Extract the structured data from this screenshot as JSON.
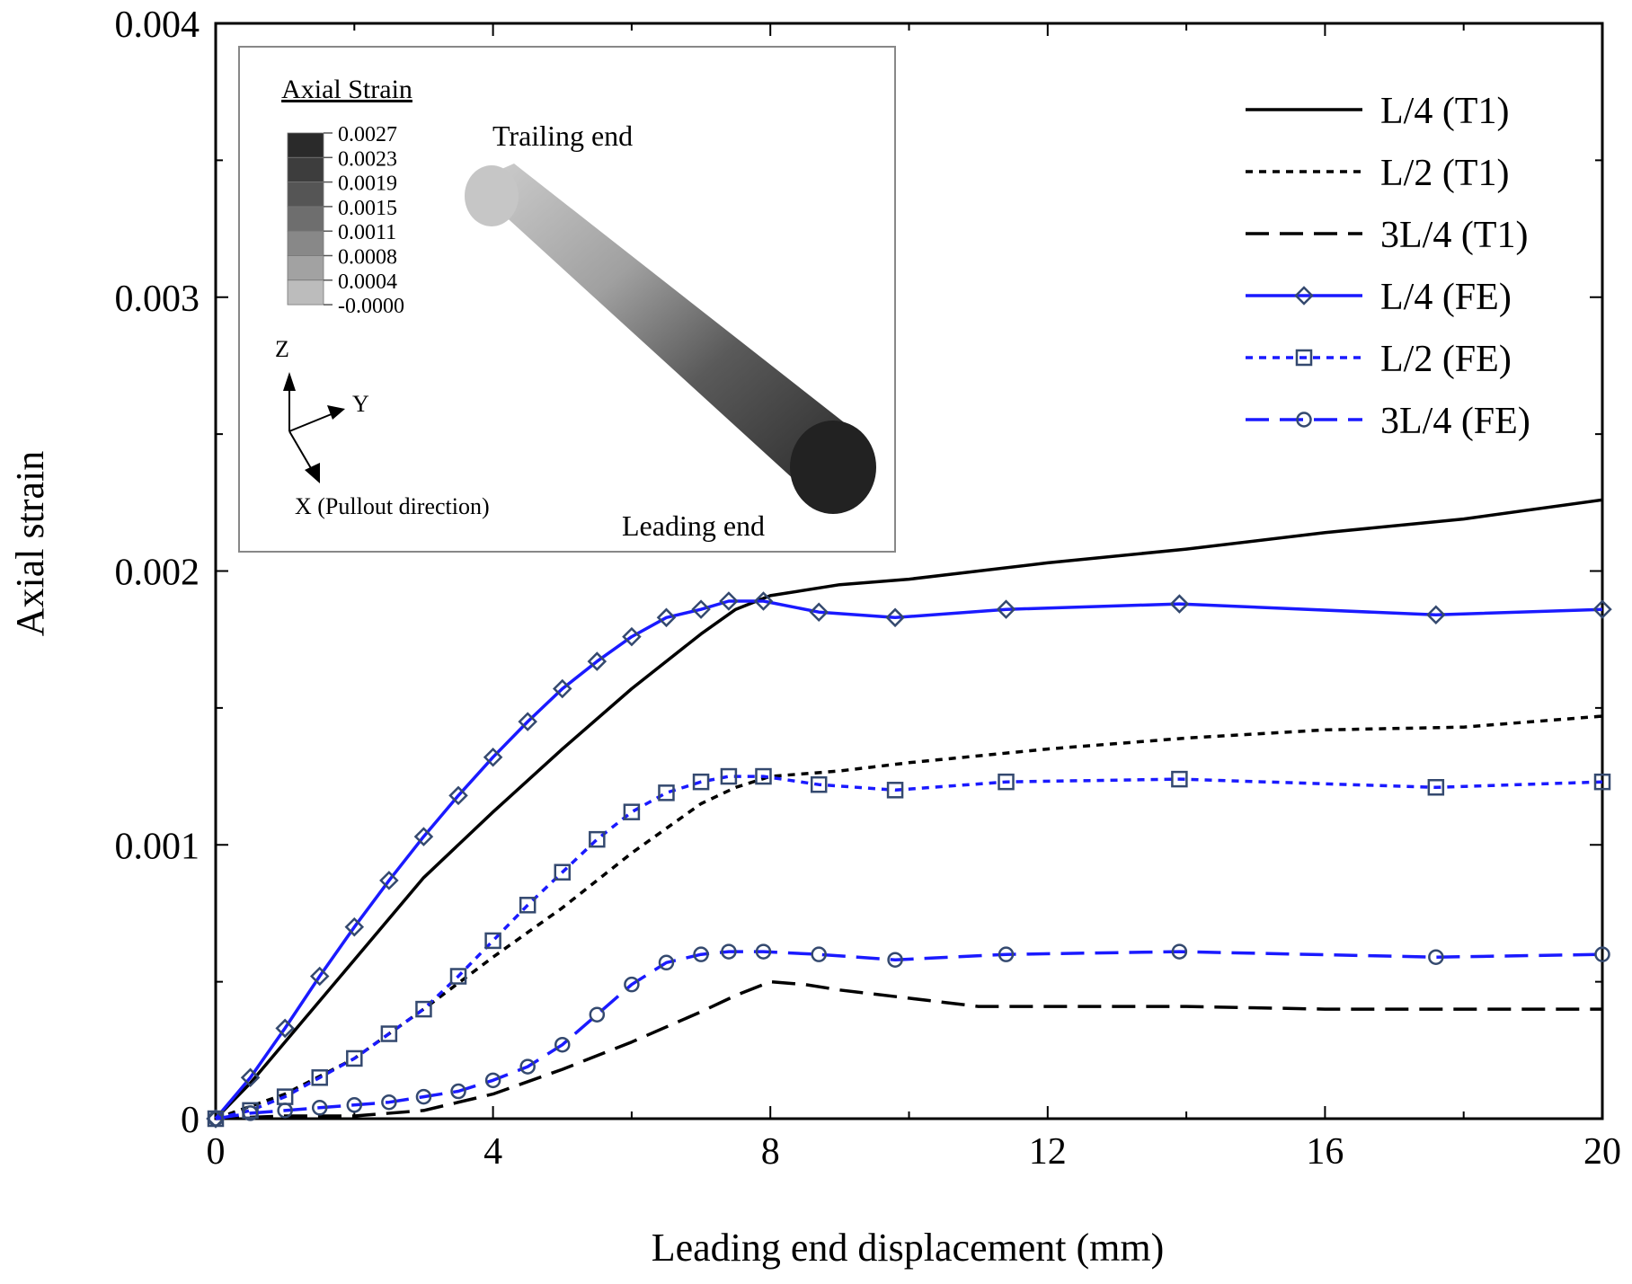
{
  "chart_data": {
    "type": "line",
    "xlabel": "Leading end displacement (mm)",
    "ylabel": "Axial strain",
    "xlim": [
      0,
      20
    ],
    "ylim": [
      0,
      0.004
    ],
    "x_ticks": [
      0,
      4,
      8,
      12,
      16,
      20
    ],
    "x_tick_labels": [
      "0",
      "4",
      "8",
      "12",
      "16",
      "20"
    ],
    "y_ticks": [
      0,
      0.001,
      0.002,
      0.003,
      0.004
    ],
    "y_tick_labels": [
      "0",
      "0.001",
      "0.002",
      "0.003",
      "0.004"
    ],
    "grid": false,
    "legend_position": "top-right",
    "series": [
      {
        "name": "L/4 (T1)",
        "color": "#000000",
        "dash": "solid",
        "marker": "none",
        "x": [
          0,
          0.5,
          1,
          1.5,
          2,
          3,
          4,
          5,
          6,
          7,
          7.5,
          8,
          9,
          10,
          12,
          14,
          16,
          18,
          20
        ],
        "y": [
          0,
          0.00013,
          0.00028,
          0.00043,
          0.00058,
          0.00088,
          0.00112,
          0.00135,
          0.00157,
          0.00177,
          0.00186,
          0.00191,
          0.00195,
          0.00197,
          0.00203,
          0.00208,
          0.00214,
          0.00219,
          0.00226
        ]
      },
      {
        "name": "L/2 (T1)",
        "color": "#000000",
        "dash": "short-dash",
        "marker": "none",
        "x": [
          0,
          1,
          2,
          3,
          4,
          5,
          6,
          7,
          7.5,
          8,
          9,
          10,
          12,
          14,
          16,
          18,
          20
        ],
        "y": [
          0,
          9e-05,
          0.00022,
          0.0004,
          0.00059,
          0.00077,
          0.00097,
          0.00115,
          0.00121,
          0.00125,
          0.00127,
          0.0013,
          0.00135,
          0.00139,
          0.00142,
          0.00143,
          0.00147
        ]
      },
      {
        "name": "3L/4 (T1)",
        "color": "#000000",
        "dash": "long-dash",
        "marker": "none",
        "x": [
          0,
          1,
          2,
          3,
          4,
          5,
          6,
          7,
          7.5,
          8,
          8.5,
          9,
          10,
          11,
          12,
          14,
          16,
          18,
          20
        ],
        "y": [
          0,
          1e-05,
          1e-05,
          3e-05,
          9e-05,
          0.00018,
          0.00028,
          0.00039,
          0.00045,
          0.0005,
          0.00049,
          0.00047,
          0.00044,
          0.00041,
          0.00041,
          0.00041,
          0.0004,
          0.0004,
          0.0004
        ]
      },
      {
        "name": "L/4 (FE)",
        "color": "#1a1aff",
        "dash": "solid",
        "marker": "diamond",
        "x": [
          0,
          0.5,
          1,
          1.5,
          2,
          2.5,
          3,
          3.5,
          4,
          4.5,
          5,
          5.5,
          6,
          6.5,
          7,
          7.4,
          7.9,
          8.7,
          9.8,
          11.4,
          13.9,
          17.6,
          20
        ],
        "y": [
          0,
          0.00015,
          0.00033,
          0.00052,
          0.0007,
          0.00087,
          0.00103,
          0.00118,
          0.00132,
          0.00145,
          0.00157,
          0.00167,
          0.00176,
          0.00183,
          0.00186,
          0.00189,
          0.00189,
          0.00185,
          0.00183,
          0.00186,
          0.00188,
          0.00184,
          0.00186
        ]
      },
      {
        "name": "L/2 (FE)",
        "color": "#1a1aff",
        "dash": "short-dash",
        "marker": "square",
        "x": [
          0,
          0.5,
          1,
          1.5,
          2,
          2.5,
          3,
          3.5,
          4,
          4.5,
          5,
          5.5,
          6,
          6.5,
          7,
          7.4,
          7.9,
          8.7,
          9.8,
          11.4,
          13.9,
          17.6,
          20
        ],
        "y": [
          0,
          3e-05,
          8e-05,
          0.00015,
          0.00022,
          0.00031,
          0.0004,
          0.00052,
          0.00065,
          0.00078,
          0.0009,
          0.00102,
          0.00112,
          0.00119,
          0.00123,
          0.00125,
          0.00125,
          0.00122,
          0.0012,
          0.00123,
          0.00124,
          0.00121,
          0.00123
        ]
      },
      {
        "name": "3L/4 (FE)",
        "color": "#1a1aff",
        "dash": "long-dash",
        "marker": "circle",
        "x": [
          0,
          0.5,
          1,
          1.5,
          2,
          2.5,
          3,
          3.5,
          4,
          4.5,
          5,
          5.5,
          6,
          6.5,
          7,
          7.4,
          7.9,
          8.7,
          9.8,
          11.4,
          13.9,
          17.6,
          20
        ],
        "y": [
          0,
          2e-05,
          3e-05,
          4e-05,
          5e-05,
          6e-05,
          8e-05,
          0.0001,
          0.00014,
          0.00019,
          0.00027,
          0.00038,
          0.00049,
          0.00057,
          0.0006,
          0.00061,
          0.00061,
          0.0006,
          0.00058,
          0.0006,
          0.00061,
          0.00059,
          0.0006
        ]
      }
    ],
    "inset": {
      "colorbar_title": "Axial Strain",
      "colorbar_labels": [
        "0.0027",
        "0.0023",
        "0.0019",
        "0.0015",
        "0.0011",
        "0.0008",
        "0.0004",
        "-0.0000"
      ],
      "colorbar_colors": [
        "#2a2a2a",
        "#3d3d3d",
        "#555555",
        "#6e6e6e",
        "#888888",
        "#a2a2a2",
        "#bcbcbc",
        "#d8d8d8"
      ],
      "trailing_label": "Trailing end",
      "leading_label": "Leading end",
      "axis_z": "Z",
      "axis_y": "Y",
      "axis_x": "X (Pullout direction)"
    }
  }
}
